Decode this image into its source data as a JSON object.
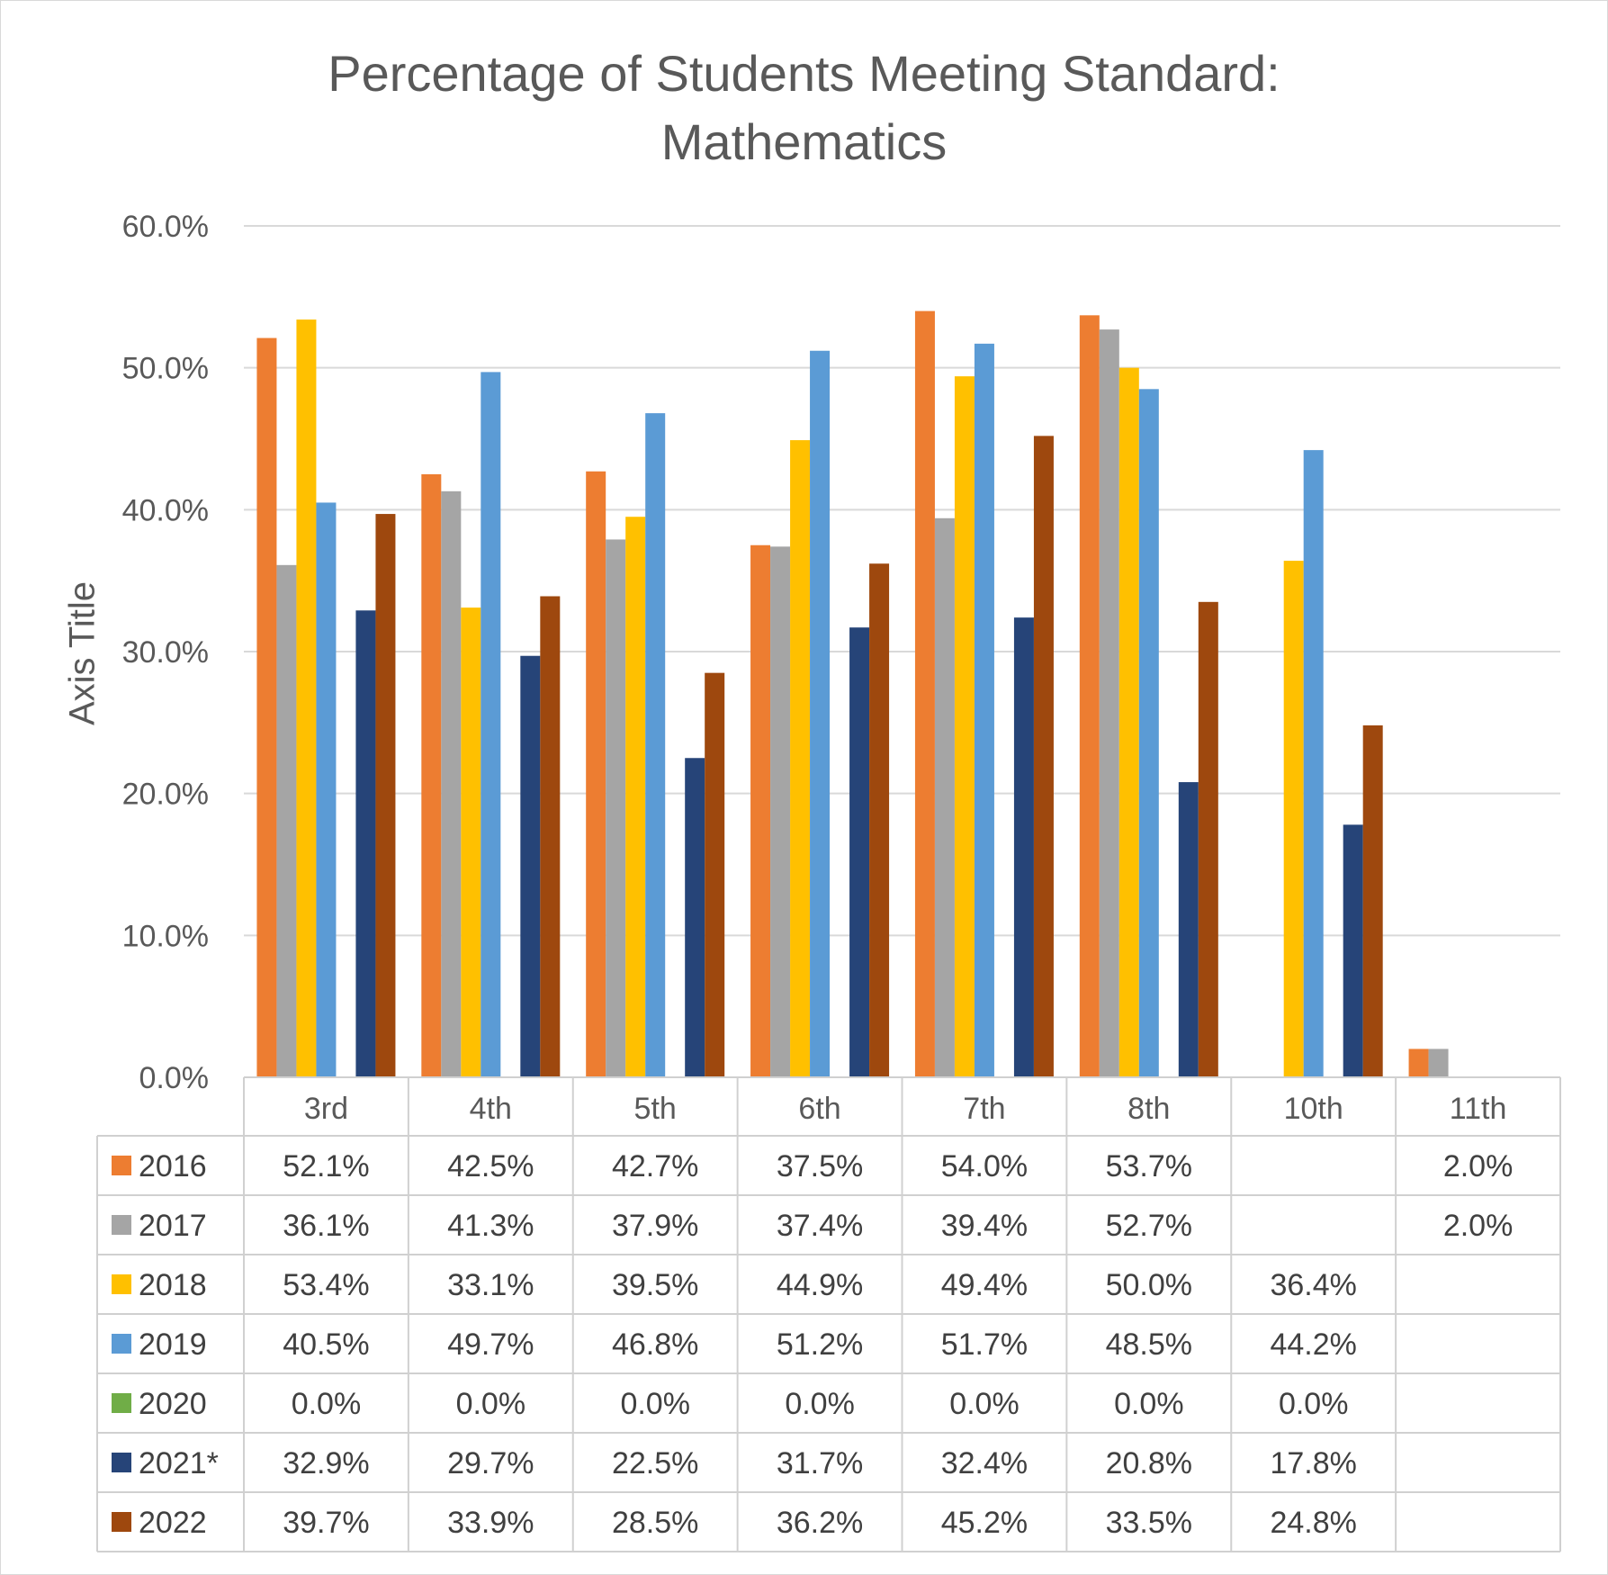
{
  "chart_data": {
    "type": "bar",
    "title": "Percentage of Students Meeting Standard: Mathematics",
    "title_lines": [
      "Percentage of Students Meeting Standard:",
      "Mathematics"
    ],
    "ylabel": "Axis Title",
    "ylim": [
      0,
      60
    ],
    "yticks": [
      "0.0%",
      "10.0%",
      "20.0%",
      "30.0%",
      "40.0%",
      "50.0%",
      "60.0%"
    ],
    "grid": true,
    "legend": "data-table",
    "categories": [
      "3rd",
      "4th",
      "5th",
      "6th",
      "7th",
      "8th",
      "10th",
      "11th"
    ],
    "series": [
      {
        "name": "2016",
        "color": "#ED7D31",
        "values": [
          52.1,
          42.5,
          42.7,
          37.5,
          54.0,
          53.7,
          null,
          2.0
        ],
        "labels": [
          "52.1%",
          "42.5%",
          "42.7%",
          "37.5%",
          "54.0%",
          "53.7%",
          "",
          "2.0%"
        ]
      },
      {
        "name": "2017",
        "color": "#A5A5A5",
        "values": [
          36.1,
          41.3,
          37.9,
          37.4,
          39.4,
          52.7,
          null,
          2.0
        ],
        "labels": [
          "36.1%",
          "41.3%",
          "37.9%",
          "37.4%",
          "39.4%",
          "52.7%",
          "",
          "2.0%"
        ]
      },
      {
        "name": "2018",
        "color": "#FFC000",
        "values": [
          53.4,
          33.1,
          39.5,
          44.9,
          49.4,
          50.0,
          36.4,
          null
        ],
        "labels": [
          "53.4%",
          "33.1%",
          "39.5%",
          "44.9%",
          "49.4%",
          "50.0%",
          "36.4%",
          ""
        ]
      },
      {
        "name": "2019",
        "color": "#5B9BD5",
        "values": [
          40.5,
          49.7,
          46.8,
          51.2,
          51.7,
          48.5,
          44.2,
          null
        ],
        "labels": [
          "40.5%",
          "49.7%",
          "46.8%",
          "51.2%",
          "51.7%",
          "48.5%",
          "44.2%",
          ""
        ]
      },
      {
        "name": "2020",
        "color": "#70AD47",
        "values": [
          0.0,
          0.0,
          0.0,
          0.0,
          0.0,
          0.0,
          0.0,
          null
        ],
        "labels": [
          "0.0%",
          "0.0%",
          "0.0%",
          "0.0%",
          "0.0%",
          "0.0%",
          "0.0%",
          ""
        ]
      },
      {
        "name": "2021*",
        "color": "#264478",
        "values": [
          32.9,
          29.7,
          22.5,
          31.7,
          32.4,
          20.8,
          17.8,
          null
        ],
        "labels": [
          "32.9%",
          "29.7%",
          "22.5%",
          "31.7%",
          "32.4%",
          "20.8%",
          "17.8%",
          ""
        ]
      },
      {
        "name": "2022",
        "color": "#9E480E",
        "values": [
          39.7,
          33.9,
          28.5,
          36.2,
          45.2,
          33.5,
          24.8,
          null
        ],
        "labels": [
          "39.7%",
          "33.9%",
          "28.5%",
          "36.2%",
          "45.2%",
          "33.5%",
          "24.8%",
          ""
        ]
      }
    ]
  }
}
